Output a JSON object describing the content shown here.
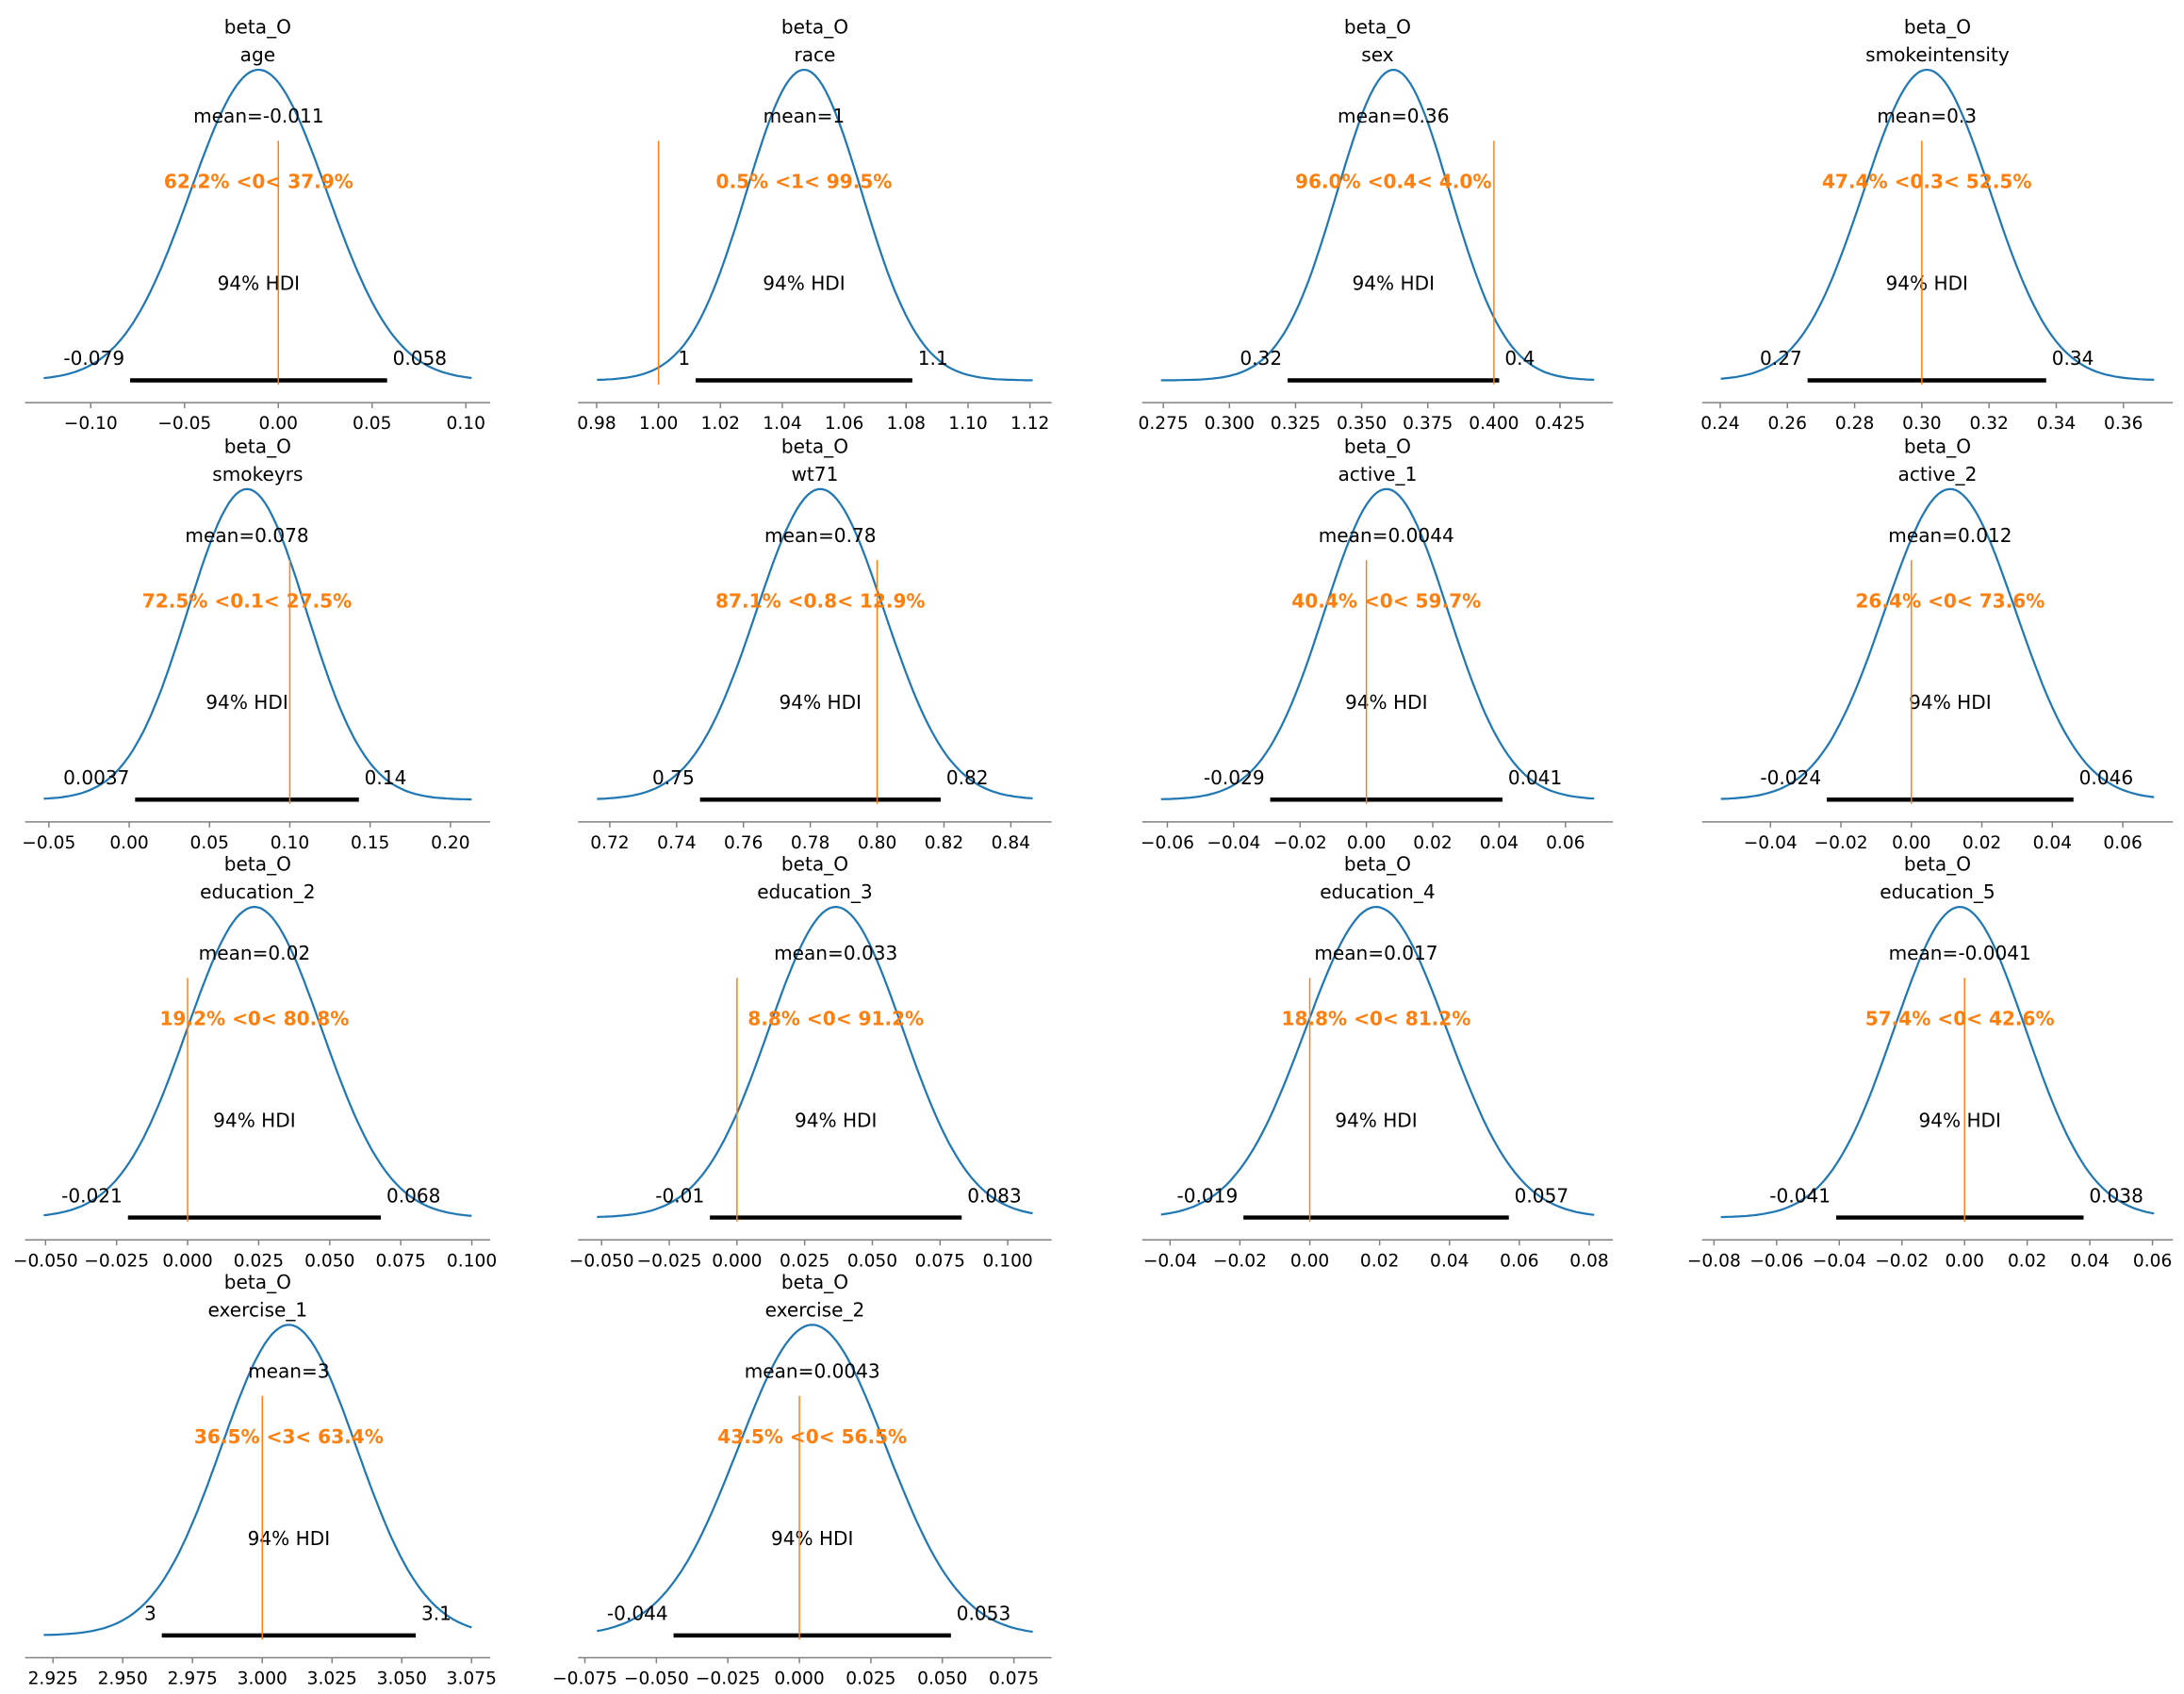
{
  "chart_data": [
    {
      "type": "line",
      "title": [
        "beta_O",
        "age"
      ],
      "xlim": [
        -0.135,
        0.113
      ],
      "ticks": [
        -0.1,
        -0.05,
        0.0,
        0.05,
        0.1
      ],
      "tick_labels": [
        "−0.10",
        "−0.05",
        "0.00",
        "0.05",
        "0.10"
      ],
      "mean_label": "mean=-0.011",
      "ref_val": 0,
      "ref_label": "62.2% <0< 37.9%",
      "hdi_label": "94% HDI",
      "hdi": [
        -0.079,
        0.058
      ],
      "hdi_text": [
        "-0.079",
        "0.058"
      ]
    },
    {
      "type": "line",
      "title": [
        "beta_O",
        "race"
      ],
      "xlim": [
        0.974,
        1.127
      ],
      "ticks": [
        0.98,
        1.0,
        1.02,
        1.04,
        1.06,
        1.08,
        1.1,
        1.12
      ],
      "tick_labels": [
        "0.98",
        "1.00",
        "1.02",
        "1.04",
        "1.06",
        "1.08",
        "1.10",
        "1.12"
      ],
      "mean_label": "mean=1",
      "ref_val": 1,
      "ref_label": "0.5% <1< 99.5%",
      "hdi_label": "94% HDI",
      "hdi": [
        1.012,
        1.082
      ],
      "hdi_text": [
        "1",
        "1.1"
      ]
    },
    {
      "type": "line",
      "title": [
        "beta_O",
        "sex"
      ],
      "xlim": [
        0.267,
        0.445
      ],
      "ticks": [
        0.275,
        0.3,
        0.325,
        0.35,
        0.375,
        0.4,
        0.425
      ],
      "tick_labels": [
        "0.275",
        "0.300",
        "0.325",
        "0.350",
        "0.375",
        "0.400",
        "0.425"
      ],
      "mean_label": "mean=0.36",
      "ref_val": 0.4,
      "ref_label": "96.0% <0.4< 4.0%",
      "hdi_label": "94% HDI",
      "hdi": [
        0.322,
        0.402
      ],
      "hdi_text": [
        "0.32",
        "0.4"
      ]
    },
    {
      "type": "line",
      "title": [
        "beta_O",
        "smokeintensity"
      ],
      "xlim": [
        0.2346,
        0.3747
      ],
      "ticks": [
        0.24,
        0.26,
        0.28,
        0.3,
        0.32,
        0.34,
        0.36
      ],
      "tick_labels": [
        "0.24",
        "0.26",
        "0.28",
        "0.30",
        "0.32",
        "0.34",
        "0.36"
      ],
      "mean_label": "mean=0.3",
      "ref_val": 0.3,
      "ref_label": "47.4% <0.3< 52.5%",
      "hdi_label": "94% HDI",
      "hdi": [
        0.266,
        0.337
      ],
      "hdi_text": [
        "0.27",
        "0.34"
      ]
    },
    {
      "type": "line",
      "title": [
        "beta_O",
        "smokeyrs"
      ],
      "xlim": [
        -0.0648,
        0.2248
      ],
      "ticks": [
        -0.05,
        0.0,
        0.05,
        0.1,
        0.15,
        0.2
      ],
      "tick_labels": [
        "−0.05",
        "0.00",
        "0.05",
        "0.10",
        "0.15",
        "0.20"
      ],
      "mean_label": "mean=0.078",
      "ref_val": 0.1,
      "ref_label": "72.5% <0.1< 27.5%",
      "hdi_label": "94% HDI",
      "hdi": [
        0.0037,
        0.143
      ],
      "hdi_text": [
        "0.0037",
        "0.14"
      ]
    },
    {
      "type": "line",
      "title": [
        "beta_O",
        "wt71"
      ],
      "xlim": [
        0.7105,
        0.8522
      ],
      "ticks": [
        0.72,
        0.74,
        0.76,
        0.78,
        0.8,
        0.82,
        0.84
      ],
      "tick_labels": [
        "0.72",
        "0.74",
        "0.76",
        "0.78",
        "0.80",
        "0.82",
        "0.84"
      ],
      "mean_label": "mean=0.78",
      "ref_val": 0.8,
      "ref_label": "87.1% <0.8< 12.9%",
      "hdi_label": "94% HDI",
      "hdi": [
        0.747,
        0.819
      ],
      "hdi_text": [
        "0.75",
        "0.82"
      ]
    },
    {
      "type": "line",
      "title": [
        "beta_O",
        "active_1"
      ],
      "xlim": [
        -0.0676,
        0.0743
      ],
      "ticks": [
        -0.06,
        -0.04,
        -0.02,
        0.0,
        0.02,
        0.04,
        0.06
      ],
      "tick_labels": [
        "−0.06",
        "−0.04",
        "−0.02",
        "0.00",
        "0.02",
        "0.04",
        "0.06"
      ],
      "mean_label": "mean=0.0044",
      "ref_val": 0,
      "ref_label": "40.4% <0< 59.7%",
      "hdi_label": "94% HDI",
      "hdi": [
        -0.029,
        0.041
      ],
      "hdi_text": [
        "-0.029",
        "0.041"
      ]
    },
    {
      "type": "line",
      "title": [
        "beta_O",
        "active_2"
      ],
      "xlim": [
        -0.0594,
        0.0742
      ],
      "ticks": [
        -0.04,
        -0.02,
        0.0,
        0.02,
        0.04,
        0.06
      ],
      "tick_labels": [
        "−0.04",
        "−0.02",
        "0.00",
        "0.02",
        "0.04",
        "0.06"
      ],
      "mean_label": "mean=0.012",
      "ref_val": 0,
      "ref_label": "26.4% <0< 73.6%",
      "hdi_label": "94% HDI",
      "hdi": [
        -0.024,
        0.046
      ],
      "hdi_text": [
        "-0.024",
        "0.046"
      ]
    },
    {
      "type": "line",
      "title": [
        "beta_O",
        "education_2"
      ],
      "xlim": [
        -0.0572,
        0.1065
      ],
      "ticks": [
        -0.05,
        -0.025,
        0.0,
        0.025,
        0.05,
        0.075,
        0.1
      ],
      "tick_labels": [
        "−0.050",
        "−0.025",
        "0.000",
        "0.025",
        "0.050",
        "0.075",
        "0.100"
      ],
      "mean_label": "mean=0.02",
      "ref_val": 0,
      "ref_label": "19.2% <0< 80.8%",
      "hdi_label": "94% HDI",
      "hdi": [
        -0.021,
        0.068
      ],
      "hdi_text": [
        "-0.021",
        "0.068"
      ]
    },
    {
      "type": "line",
      "title": [
        "beta_O",
        "education_3"
      ],
      "xlim": [
        -0.0587,
        0.1162
      ],
      "ticks": [
        -0.05,
        -0.025,
        0.0,
        0.025,
        0.05,
        0.075,
        0.1
      ],
      "tick_labels": [
        "−0.050",
        "−0.025",
        "0.000",
        "0.025",
        "0.050",
        "0.075",
        "0.100"
      ],
      "mean_label": "mean=0.033",
      "ref_val": 0,
      "ref_label": "8.8% <0< 91.2%",
      "hdi_label": "94% HDI",
      "hdi": [
        -0.01,
        0.083
      ],
      "hdi_text": [
        "-0.01",
        "0.083"
      ]
    },
    {
      "type": "line",
      "title": [
        "beta_O",
        "education_4"
      ],
      "xlim": [
        -0.048,
        0.0868
      ],
      "ticks": [
        -0.04,
        -0.02,
        0.0,
        0.02,
        0.04,
        0.06,
        0.08
      ],
      "tick_labels": [
        "−0.04",
        "−0.02",
        "0.00",
        "0.02",
        "0.04",
        "0.06",
        "0.08"
      ],
      "mean_label": "mean=0.017",
      "ref_val": 0,
      "ref_label": "18.8% <0< 81.2%",
      "hdi_label": "94% HDI",
      "hdi": [
        -0.019,
        0.057
      ],
      "hdi_text": [
        "-0.019",
        "0.057"
      ]
    },
    {
      "type": "line",
      "title": [
        "beta_O",
        "education_5"
      ],
      "xlim": [
        -0.0838,
        0.0665
      ],
      "ticks": [
        -0.08,
        -0.06,
        -0.04,
        -0.02,
        0.0,
        0.02,
        0.04,
        0.06
      ],
      "tick_labels": [
        "−0.08",
        "−0.06",
        "−0.04",
        "−0.02",
        "0.00",
        "0.02",
        "0.04",
        "0.06"
      ],
      "mean_label": "mean=-0.0041",
      "ref_val": 0,
      "ref_label": "57.4% <0< 42.6%",
      "hdi_label": "94% HDI",
      "hdi": [
        -0.041,
        0.038
      ],
      "hdi_text": [
        "-0.041",
        "0.038"
      ]
    },
    {
      "type": "line",
      "title": [
        "beta_O",
        "exercise_1"
      ],
      "xlim": [
        2.915,
        3.0817
      ],
      "ticks": [
        2.925,
        2.95,
        2.975,
        3.0,
        3.025,
        3.05,
        3.075
      ],
      "tick_labels": [
        "2.925",
        "2.950",
        "2.975",
        "3.000",
        "3.025",
        "3.050",
        "3.075"
      ],
      "mean_label": "mean=3",
      "ref_val": 3,
      "ref_label": "36.5% <3< 63.4%",
      "hdi_label": "94% HDI",
      "hdi": [
        2.964,
        3.055
      ],
      "hdi_text": [
        "3",
        "3.1"
      ]
    },
    {
      "type": "line",
      "title": [
        "beta_O",
        "exercise_2"
      ],
      "xlim": [
        -0.0774,
        0.0882
      ],
      "ticks": [
        -0.075,
        -0.05,
        -0.025,
        0.0,
        0.025,
        0.05,
        0.075
      ],
      "tick_labels": [
        "−0.075",
        "−0.050",
        "−0.025",
        "0.000",
        "0.025",
        "0.050",
        "0.075"
      ],
      "mean_label": "mean=0.0043",
      "ref_val": 0,
      "ref_label": "43.5% <0< 56.5%",
      "hdi_label": "94% HDI",
      "hdi": [
        -0.044,
        0.053
      ],
      "hdi_text": [
        "-0.044",
        "0.053"
      ]
    }
  ],
  "colors": {
    "kde": "#1f77b4",
    "ref": "#ff7f0e",
    "hdi": "#000000",
    "axis": "#808080"
  }
}
